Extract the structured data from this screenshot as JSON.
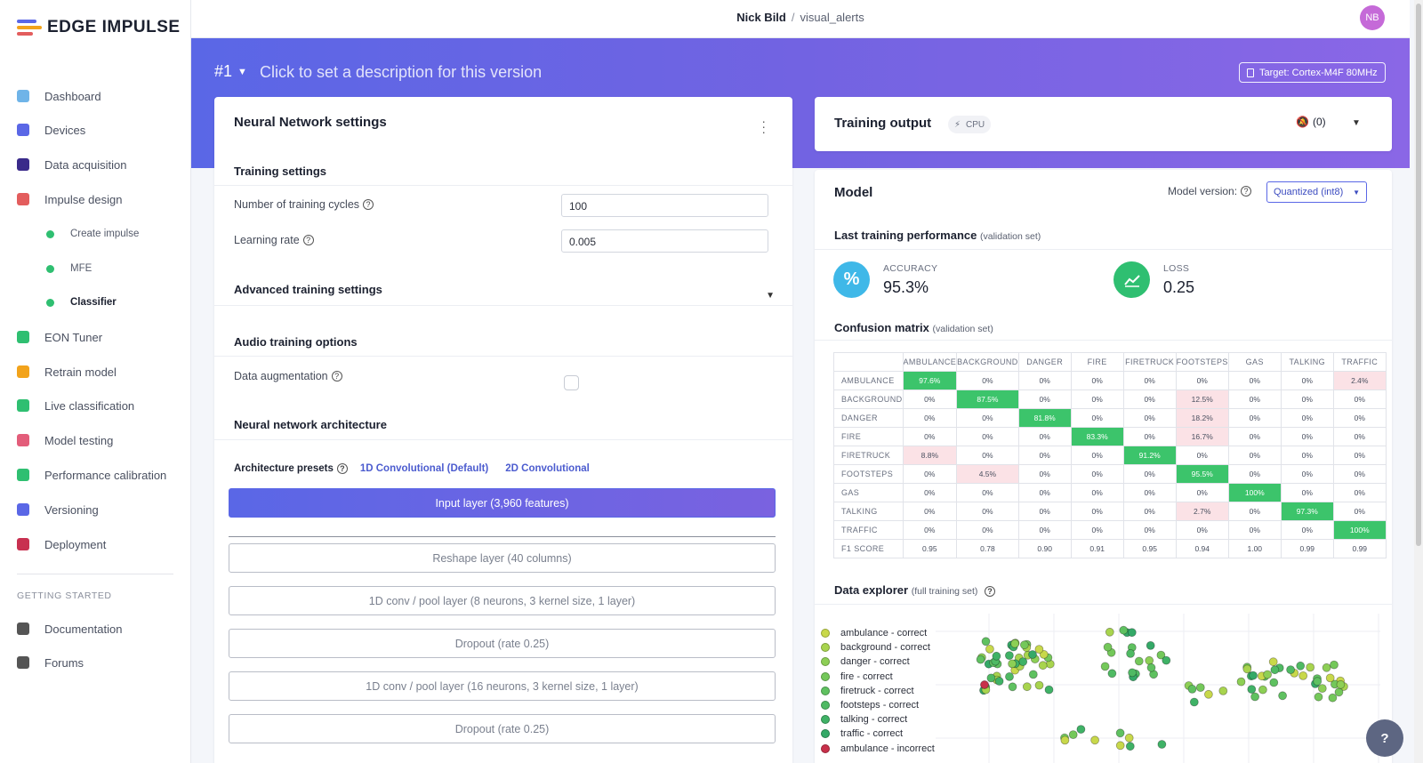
{
  "app": {
    "brand": "EDGE IMPULSE",
    "user": "Nick Bild",
    "project": "visual_alerts",
    "avatar_initials": "NB"
  },
  "sidebar": {
    "items": [
      {
        "label": "Dashboard",
        "icon": "monitor-icon",
        "color": "#6fb4e8"
      },
      {
        "label": "Devices",
        "icon": "chip-icon",
        "color": "#5a67e6"
      },
      {
        "label": "Data acquisition",
        "icon": "database-icon",
        "color": "#3a2a8a"
      },
      {
        "label": "Impulse design",
        "icon": "pulse-icon",
        "color": "#e35d5d"
      }
    ],
    "sub_items": [
      {
        "label": "Create impulse"
      },
      {
        "label": "MFE"
      },
      {
        "label": "Classifier"
      }
    ],
    "items2": [
      {
        "label": "EON Tuner",
        "icon": "target-icon",
        "color": "#2fbf71"
      },
      {
        "label": "Retrain model",
        "icon": "shuffle-icon",
        "color": "#f2a31b"
      },
      {
        "label": "Live classification",
        "icon": "graph-icon",
        "color": "#2fbf71"
      },
      {
        "label": "Model testing",
        "icon": "clipboard-icon",
        "color": "#e35d7a"
      },
      {
        "label": "Performance calibration",
        "icon": "bar-chart-icon",
        "color": "#2fbf71"
      },
      {
        "label": "Versioning",
        "icon": "branch-icon",
        "color": "#5a67e6"
      },
      {
        "label": "Deployment",
        "icon": "box-icon",
        "color": "#c83050"
      }
    ],
    "getting_started": "GETTING STARTED",
    "items3": [
      {
        "label": "Documentation",
        "icon": "rocket-icon",
        "color": "#555"
      },
      {
        "label": "Forums",
        "icon": "chat-icon",
        "color": "#555"
      }
    ]
  },
  "version": {
    "number": "#1",
    "description_placeholder": "Click to set a description for this version",
    "target": "Target: Cortex-M4F 80MHz"
  },
  "nn_settings": {
    "title": "Neural Network settings",
    "training_settings": "Training settings",
    "cycles_label": "Number of training cycles",
    "cycles_value": "100",
    "lr_label": "Learning rate",
    "lr_value": "0.005",
    "advanced": "Advanced training settings",
    "audio_options": "Audio training options",
    "augmentation": "Data augmentation",
    "architecture": "Neural network architecture",
    "presets_label": "Architecture presets",
    "presets": [
      "1D Convolutional (Default)",
      "2D Convolutional"
    ],
    "layers": [
      "Input layer (3,960 features)",
      "Reshape layer (40 columns)",
      "1D conv / pool layer (8 neurons, 3 kernel size, 1 layer)",
      "Dropout (rate 0.25)",
      "1D conv / pool layer (16 neurons, 3 kernel size, 1 layer)",
      "Dropout (rate 0.25)"
    ]
  },
  "training_output": {
    "title": "Training output",
    "badge": "CPU",
    "notifications": "(0)"
  },
  "model": {
    "title": "Model",
    "version_label": "Model version:",
    "version_value": "Quantized (int8)",
    "perf_title": "Last training performance",
    "perf_note": "(validation set)",
    "accuracy_label": "ACCURACY",
    "accuracy_value": "95.3%",
    "loss_label": "LOSS",
    "loss_value": "0.25",
    "cm_title": "Confusion matrix",
    "cm_note": "(validation set)",
    "cm_columns": [
      "AMBULANCE",
      "BACKGROUND",
      "DANGER",
      "FIRE",
      "FIRETRUCK",
      "FOOTSTEPS",
      "GAS",
      "TALKING",
      "TRAFFIC"
    ],
    "cm_rows": [
      {
        "label": "AMBULANCE",
        "cells": [
          "97.6%",
          "0%",
          "0%",
          "0%",
          "0%",
          "0%",
          "0%",
          "0%",
          "2.4%"
        ]
      },
      {
        "label": "BACKGROUND",
        "cells": [
          "0%",
          "87.5%",
          "0%",
          "0%",
          "0%",
          "12.5%",
          "0%",
          "0%",
          "0%"
        ]
      },
      {
        "label": "DANGER",
        "cells": [
          "0%",
          "0%",
          "81.8%",
          "0%",
          "0%",
          "18.2%",
          "0%",
          "0%",
          "0%"
        ]
      },
      {
        "label": "FIRE",
        "cells": [
          "0%",
          "0%",
          "0%",
          "83.3%",
          "0%",
          "16.7%",
          "0%",
          "0%",
          "0%"
        ]
      },
      {
        "label": "FIRETRUCK",
        "cells": [
          "8.8%",
          "0%",
          "0%",
          "0%",
          "91.2%",
          "0%",
          "0%",
          "0%",
          "0%"
        ]
      },
      {
        "label": "FOOTSTEPS",
        "cells": [
          "0%",
          "4.5%",
          "0%",
          "0%",
          "0%",
          "95.5%",
          "0%",
          "0%",
          "0%"
        ]
      },
      {
        "label": "GAS",
        "cells": [
          "0%",
          "0%",
          "0%",
          "0%",
          "0%",
          "0%",
          "100%",
          "0%",
          "0%"
        ]
      },
      {
        "label": "TALKING",
        "cells": [
          "0%",
          "0%",
          "0%",
          "0%",
          "0%",
          "2.7%",
          "0%",
          "97.3%",
          "0%"
        ]
      },
      {
        "label": "TRAFFIC",
        "cells": [
          "0%",
          "0%",
          "0%",
          "0%",
          "0%",
          "0%",
          "0%",
          "0%",
          "100%"
        ]
      },
      {
        "label": "F1 SCORE",
        "cells": [
          "0.95",
          "0.78",
          "0.90",
          "0.91",
          "0.95",
          "0.94",
          "1.00",
          "0.99",
          "0.99"
        ]
      }
    ],
    "explorer_title": "Data explorer",
    "explorer_note": "(full training set)",
    "legend": [
      {
        "label": "ambulance - correct",
        "color": "#c8d84a"
      },
      {
        "label": "background - correct",
        "color": "#a8d44e"
      },
      {
        "label": "danger - correct",
        "color": "#8dcf55"
      },
      {
        "label": "fire - correct",
        "color": "#74c85a"
      },
      {
        "label": "firetruck - correct",
        "color": "#5fc160"
      },
      {
        "label": "footsteps - correct",
        "color": "#4fba63"
      },
      {
        "label": "talking - correct",
        "color": "#3fb266"
      },
      {
        "label": "traffic - correct",
        "color": "#34a967"
      },
      {
        "label": "ambulance - incorrect",
        "color": "#c8304a"
      }
    ]
  },
  "colors": {
    "accent": "#5a67e6",
    "success": "#3cc46b",
    "confusion": "#fbe2e6"
  }
}
